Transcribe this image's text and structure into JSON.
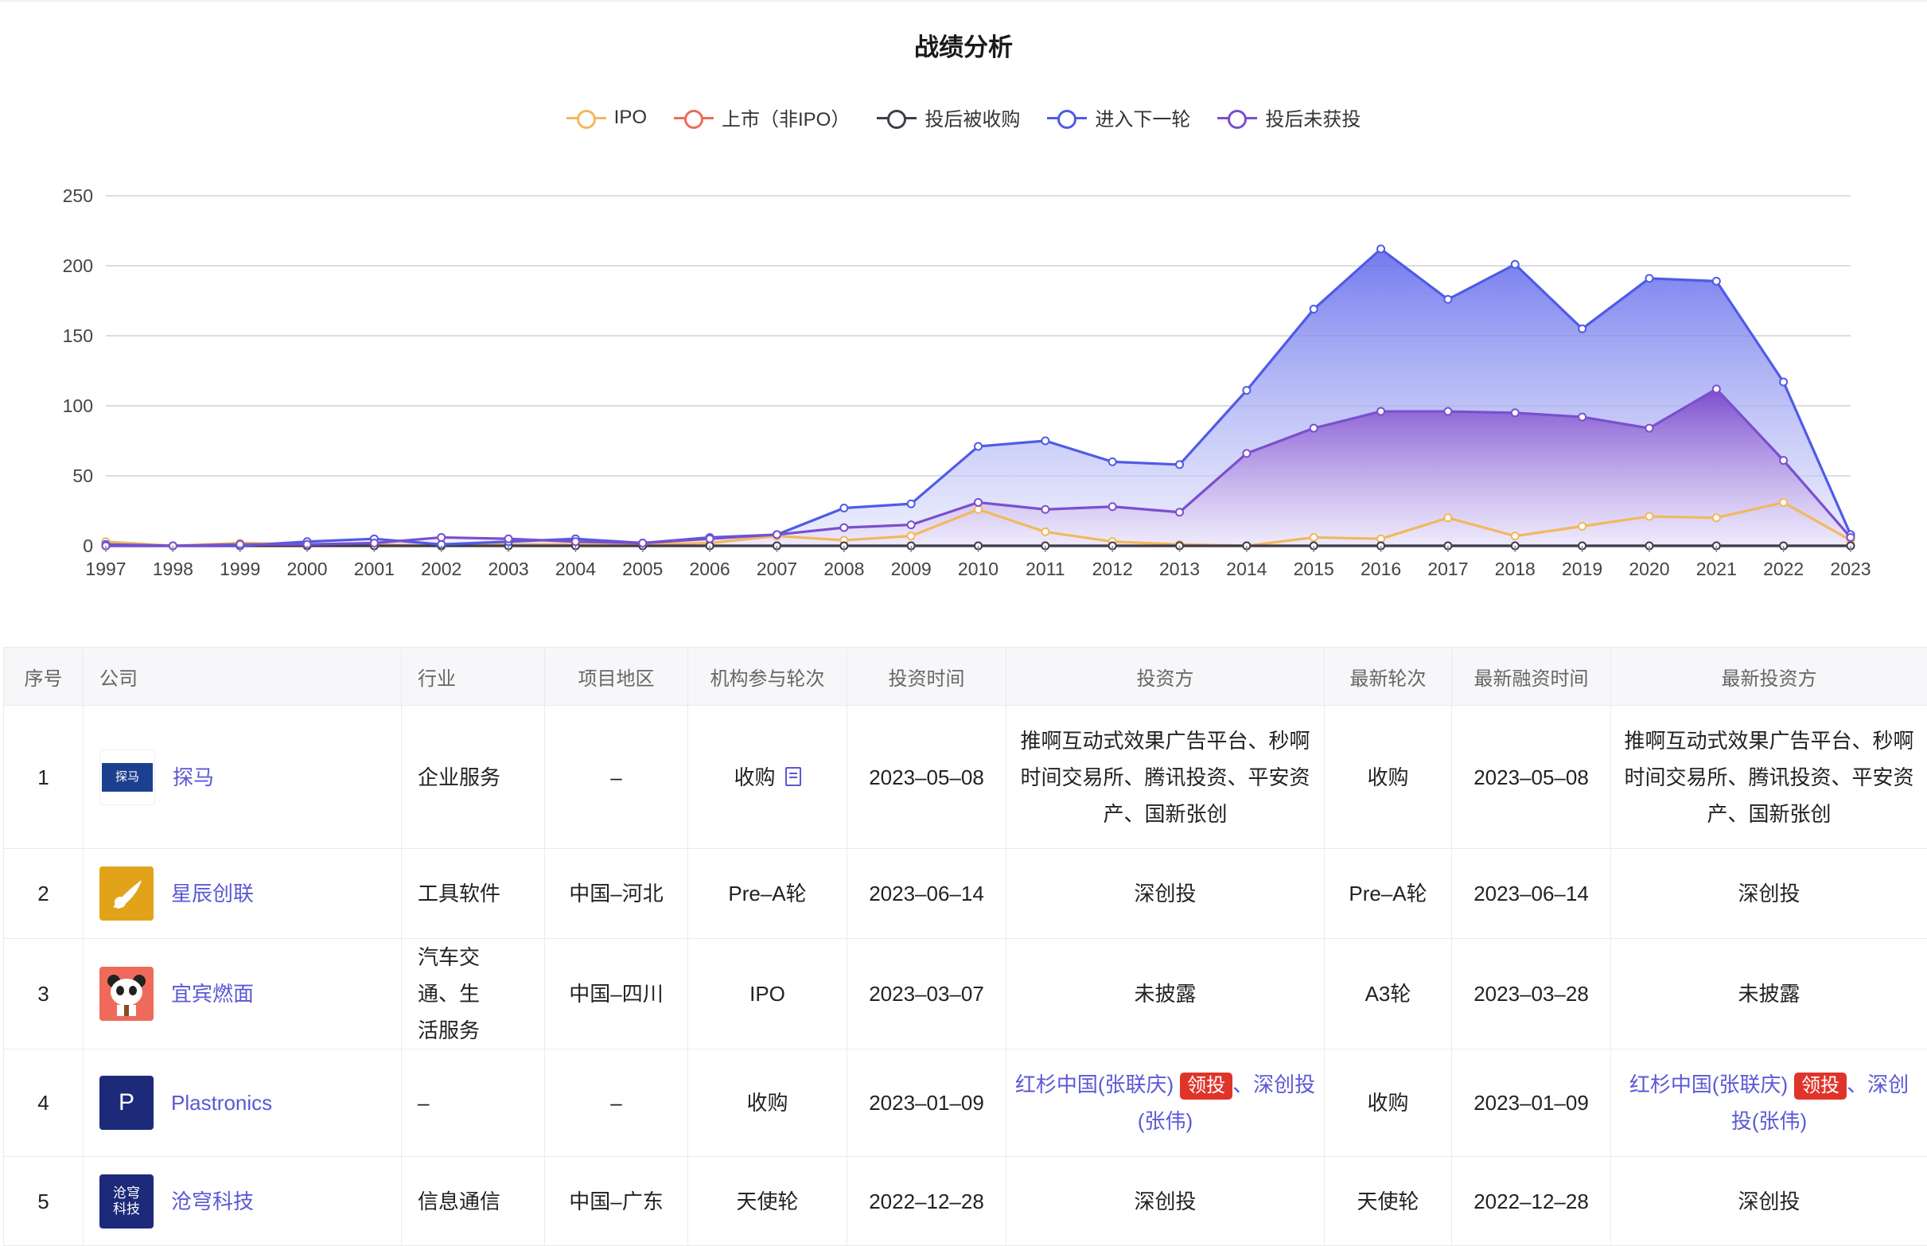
{
  "chart_data": {
    "type": "line",
    "title": "战绩分析",
    "x": [
      "1997",
      "1998",
      "1999",
      "2000",
      "2001",
      "2002",
      "2003",
      "2004",
      "2005",
      "2006",
      "2007",
      "2008",
      "2009",
      "2010",
      "2011",
      "2012",
      "2013",
      "2014",
      "2015",
      "2016",
      "2017",
      "2018",
      "2019",
      "2020",
      "2021",
      "2022",
      "2023"
    ],
    "ylim": [
      0,
      250
    ],
    "yticks": [
      0,
      50,
      100,
      150,
      200,
      250
    ],
    "grid": true,
    "legend_position": "top-center",
    "series": [
      {
        "name": "IPO",
        "color": "#f2b85c",
        "area": false,
        "values": [
          3,
          0,
          2,
          1,
          1,
          0,
          1,
          1,
          1,
          2,
          7,
          4,
          7,
          26,
          10,
          3,
          1,
          0,
          6,
          5,
          20,
          7,
          14,
          21,
          20,
          31,
          4
        ]
      },
      {
        "name": "上市（非IPO）",
        "color": "#ee6a5b",
        "area": false,
        "values": [
          0,
          0,
          0,
          0,
          0,
          0,
          0,
          0,
          0,
          0,
          0,
          0,
          0,
          0,
          0,
          0,
          0,
          0,
          0,
          0,
          0,
          0,
          0,
          0,
          0,
          0,
          0
        ]
      },
      {
        "name": "投后被收购",
        "color": "#3d3d4d",
        "area": false,
        "values": [
          0,
          0,
          0,
          0,
          0,
          0,
          0,
          0,
          0,
          0,
          0,
          0,
          0,
          0,
          0,
          0,
          0,
          0,
          0,
          0,
          0,
          0,
          0,
          0,
          0,
          0,
          0
        ]
      },
      {
        "name": "进入下一轮",
        "color": "#4f5be6",
        "area": true,
        "values": [
          1,
          0,
          0,
          3,
          5,
          1,
          3,
          5,
          2,
          6,
          8,
          27,
          30,
          71,
          75,
          60,
          58,
          111,
          169,
          212,
          176,
          201,
          155,
          191,
          189,
          117,
          8
        ]
      },
      {
        "name": "投后未获投",
        "color": "#7a4fcf",
        "area": true,
        "values": [
          0,
          0,
          1,
          1,
          2,
          6,
          5,
          3,
          2,
          5,
          8,
          13,
          15,
          31,
          26,
          28,
          24,
          66,
          84,
          96,
          96,
          95,
          92,
          84,
          112,
          61,
          6
        ]
      }
    ]
  },
  "table": {
    "headers": [
      "序号",
      "公司",
      "行业",
      "项目地区",
      "机构参与轮次",
      "投资时间",
      "投资方",
      "最新轮次",
      "最新融资时间",
      "最新投资方"
    ],
    "rows": [
      {
        "index": "1",
        "company": "探马",
        "logo_text": "探马",
        "logo_color": "#1c3f8f",
        "industry": "企业服务",
        "region": "–",
        "round": "收购",
        "date": "2023–05–08",
        "investors": "推啊互动式效果广告平台、秒啊时间交易所、腾讯投资、平安资产、国新张创",
        "latest_round": "收购",
        "latest_date": "2023–05–08",
        "latest_investors": "推啊互动式效果广告平台、秒啊时间交易所、腾讯投资、平安资产、国新张创"
      },
      {
        "index": "2",
        "company": "星辰创联",
        "logo_text": "",
        "logo_color": "#e2a21a",
        "industry": "工具软件",
        "region": "中国–河北",
        "round": "Pre–A轮",
        "date": "2023–06–14",
        "investors": "深创投",
        "latest_round": "Pre–A轮",
        "latest_date": "2023–06–14",
        "latest_investors": "深创投"
      },
      {
        "index": "3",
        "company": "宜宾燃面",
        "logo_text": "",
        "logo_color": "#ef6a5a",
        "industry": "汽车交通、生活服务",
        "region": "中国–四川",
        "round": "IPO",
        "date": "2023–03–07",
        "investors": "未披露",
        "latest_round": "A3轮",
        "latest_date": "2023–03–28",
        "latest_investors": "未披露"
      },
      {
        "index": "4",
        "company": "Plastronics",
        "logo_text": "P",
        "logo_color": "#1d2a7a",
        "industry": "–",
        "region": "–",
        "round": "收购",
        "date": "2023–01–09",
        "investor_a": "红杉中国(",
        "investor_a_person": "张联庆",
        "investor_a_close": ")",
        "lead_tag": "领投",
        "investor_b": "、深创投(",
        "investor_b_person": "张伟",
        "investor_b_close": ")",
        "latest_round": "收购",
        "latest_date": "2023–01–09"
      },
      {
        "index": "5",
        "company": "沧穹科技",
        "logo_text": "沧穹科技",
        "logo_color": "#1d2a7a",
        "industry": "信息通信",
        "region": "中国–广东",
        "round": "天使轮",
        "date": "2022–12–28",
        "investors": "深创投",
        "latest_round": "天使轮",
        "latest_date": "2022–12–28",
        "latest_investors": "深创投"
      }
    ]
  }
}
